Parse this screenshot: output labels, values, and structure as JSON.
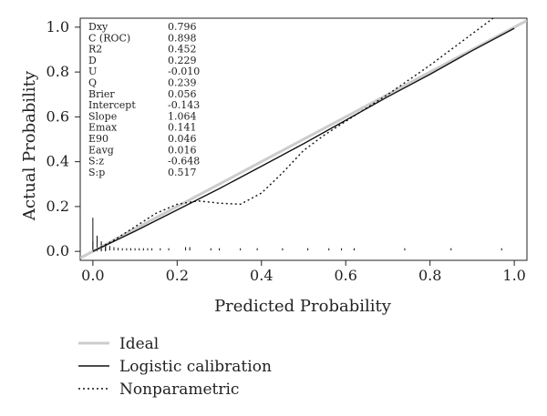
{
  "chart_data": {
    "type": "line",
    "xlabel": "Predicted Probability",
    "ylabel": "Actual Probability",
    "xlim": [
      -0.03,
      1.03
    ],
    "ylim": [
      -0.04,
      1.04
    ],
    "x_ticks": [
      "0.0",
      "0.2",
      "0.4",
      "0.6",
      "0.8",
      "1.0"
    ],
    "y_ticks": [
      "0.0",
      "0.2",
      "0.4",
      "0.6",
      "0.8",
      "1.0"
    ],
    "grid": false,
    "legend_position": "bottom-left",
    "stats": [
      {
        "name": "Dxy",
        "value": "0.796"
      },
      {
        "name": "C (ROC)",
        "value": "0.898"
      },
      {
        "name": "R2",
        "value": "0.452"
      },
      {
        "name": "D",
        "value": "0.229"
      },
      {
        "name": "U",
        "value": "-0.010"
      },
      {
        "name": "Q",
        "value": "0.239"
      },
      {
        "name": "Brier",
        "value": "0.056"
      },
      {
        "name": "Intercept",
        "value": "-0.143"
      },
      {
        "name": "Slope",
        "value": "1.064"
      },
      {
        "name": "Emax",
        "value": "0.141"
      },
      {
        "name": "E90",
        "value": "0.046"
      },
      {
        "name": "Eavg",
        "value": "0.016"
      },
      {
        "name": "S:z",
        "value": "-0.648"
      },
      {
        "name": "S:p",
        "value": "0.517"
      }
    ],
    "series": [
      {
        "name": "Ideal",
        "style": "solid",
        "color": "#cccccc",
        "x": [
          -0.03,
          1.03
        ],
        "y": [
          -0.03,
          1.03
        ]
      },
      {
        "name": "Logistic calibration",
        "style": "solid",
        "color": "#111111",
        "x": [
          0.0,
          0.05,
          0.1,
          0.2,
          0.3,
          0.4,
          0.5,
          0.6,
          0.7,
          0.8,
          0.9,
          1.0
        ],
        "y": [
          0.0,
          0.045,
          0.09,
          0.185,
          0.28,
          0.38,
          0.48,
          0.585,
          0.69,
          0.79,
          0.895,
          0.995
        ]
      },
      {
        "name": "Nonparametric",
        "style": "dotted",
        "color": "#111111",
        "x": [
          0.0,
          0.05,
          0.1,
          0.15,
          0.2,
          0.25,
          0.3,
          0.35,
          0.4,
          0.45,
          0.5,
          0.55,
          0.6,
          0.7,
          0.8,
          0.9,
          0.95
        ],
        "y": [
          0.0,
          0.05,
          0.11,
          0.17,
          0.21,
          0.225,
          0.215,
          0.21,
          0.26,
          0.35,
          0.45,
          0.52,
          0.58,
          0.7,
          0.83,
          0.97,
          1.04
        ]
      }
    ],
    "rug": {
      "spike_x": [
        0.0,
        0.01,
        0.02,
        0.03
      ],
      "spike_heights": [
        0.15,
        0.07,
        0.045,
        0.03
      ],
      "events_x": [
        0.0,
        0.01,
        0.02,
        0.03,
        0.04,
        0.05,
        0.06,
        0.07,
        0.08,
        0.09,
        0.1,
        0.11,
        0.12,
        0.13,
        0.14,
        0.16,
        0.18,
        0.22,
        0.23,
        0.28,
        0.3,
        0.35,
        0.39,
        0.45,
        0.51,
        0.56,
        0.59,
        0.62,
        0.74,
        0.85,
        0.97
      ],
      "event_heights": [
        0.04,
        0.035,
        0.03,
        0.025,
        0.02,
        0.015,
        0.012,
        0.01,
        0.01,
        0.01,
        0.01,
        0.01,
        0.01,
        0.01,
        0.01,
        0.01,
        0.01,
        0.015,
        0.015,
        0.01,
        0.01,
        0.01,
        0.01,
        0.01,
        0.01,
        0.01,
        0.01,
        0.01,
        0.01,
        0.01,
        0.01
      ]
    }
  }
}
